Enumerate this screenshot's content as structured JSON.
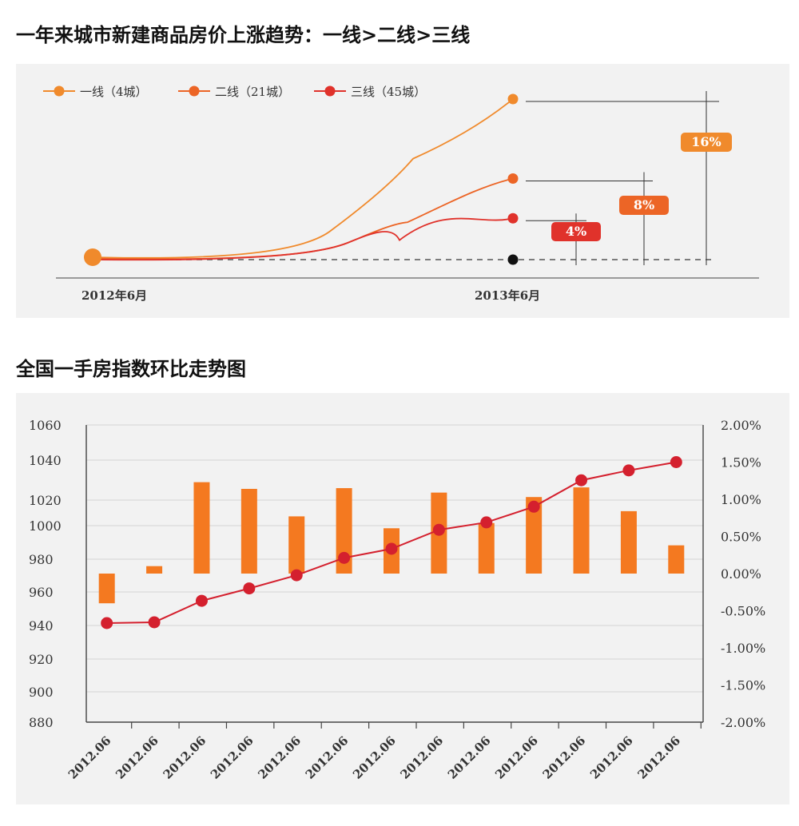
{
  "section1": {
    "title": "一年来城市新建商品房价上涨趋势：一线>二线>三线"
  },
  "section2": {
    "title": "全国一手房指数环比走势图"
  },
  "chart_data": [
    {
      "type": "line",
      "x": [
        "2012年6月",
        "2013年6月"
      ],
      "series": [
        {
          "name": "一线（4城）",
          "values": [
            0,
            16
          ],
          "color": "#f08a2c",
          "label": "16%"
        },
        {
          "name": "二线（21城）",
          "values": [
            0,
            8
          ],
          "color": "#ec6526",
          "label": "8%"
        },
        {
          "name": "三线（45城）",
          "values": [
            0,
            4
          ],
          "color": "#e0322b",
          "label": "4%"
        }
      ],
      "ylim": [
        0,
        18
      ],
      "baseline": 0,
      "legend": "top-left"
    },
    {
      "type": "bar",
      "categories": [
        "2012.06",
        "2012.06",
        "2012.06",
        "2012.06",
        "2012.06",
        "2012.06",
        "2012.06",
        "2012.06",
        "2012.06",
        "2012.06",
        "2012.06",
        "2012.06",
        "2012.06"
      ],
      "series": [
        {
          "axis": "right",
          "type": "bar",
          "color": "#f47920",
          "values": [
            -0.4,
            0.1,
            1.23,
            1.14,
            0.77,
            1.15,
            0.61,
            1.09,
            0.68,
            1.03,
            1.16,
            0.84,
            0.38
          ]
        },
        {
          "axis": "left",
          "type": "line",
          "color": "#d4202e",
          "values": [
            940,
            940.5,
            953.5,
            961,
            969,
            979.5,
            985,
            996.5,
            1001,
            1010.5,
            1026.5,
            1032.5,
            1037.5
          ]
        }
      ],
      "yleft": {
        "lim": [
          880,
          1060
        ],
        "ticks": [
          "1060",
          "1040",
          "1020",
          "1000",
          "980",
          "960",
          "940",
          "920",
          "900",
          "880"
        ]
      },
      "yright": {
        "lim": [
          -2.0,
          2.0
        ],
        "ticks": [
          "2.00%",
          "1.50%",
          "1.00%",
          "0.50%",
          "0.00%",
          "-0.50%",
          "-1.00%",
          "-1.50%",
          "-2.00%"
        ]
      },
      "grid": true
    }
  ]
}
